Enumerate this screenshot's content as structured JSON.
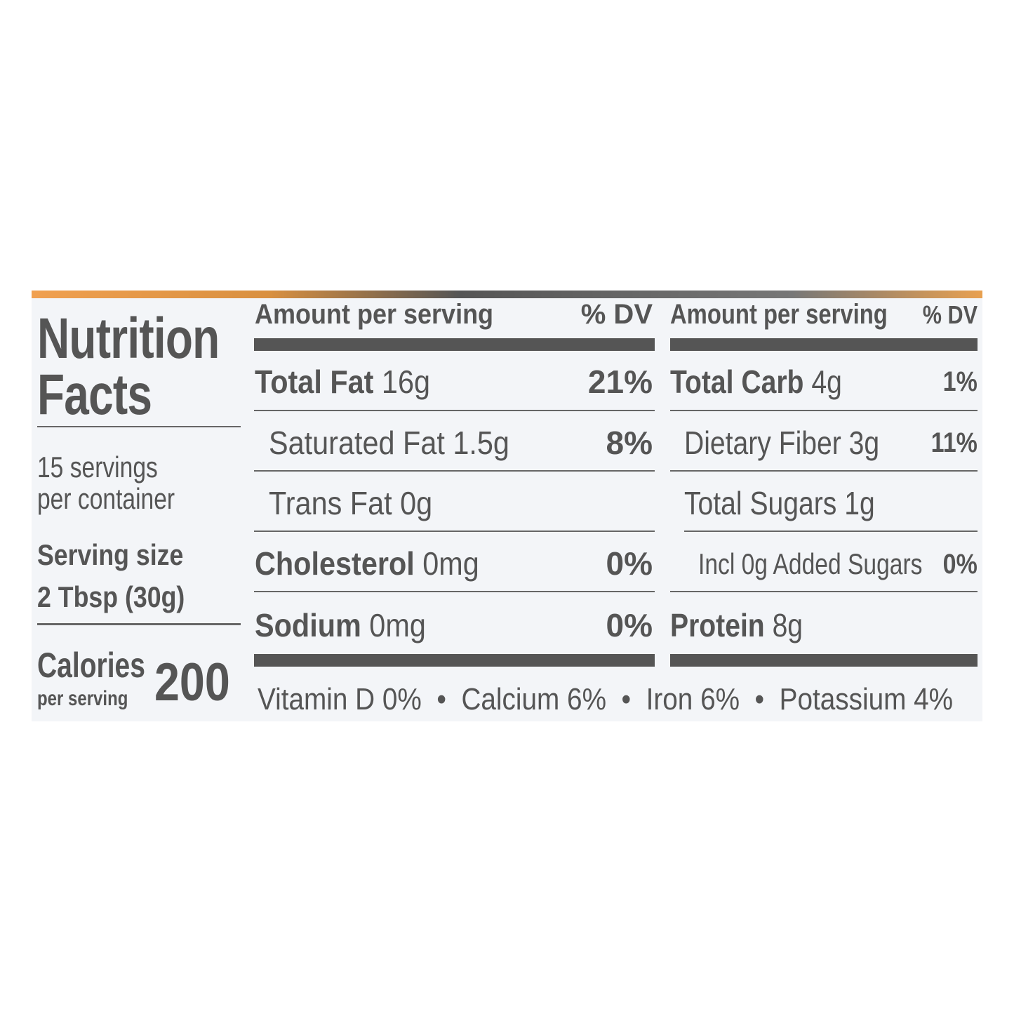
{
  "title_line1": "Nutrition",
  "title_line2": "Facts",
  "servings_line1": "15 servings",
  "servings_line2": "per container",
  "serving_size_label": "Serving size",
  "serving_size_value": "2 Tbsp (30g)",
  "calories_label": "Calories",
  "calories_sub": "per serving",
  "calories_value": "200",
  "left_table": {
    "header": "Amount per serving",
    "dv_header": "% DV",
    "rows": [
      {
        "name": "Total Fat",
        "amount": "16g",
        "dv": "21%"
      },
      {
        "name": "Saturated Fat",
        "amount": "1.5g",
        "dv": "8%"
      },
      {
        "name": "Trans Fat",
        "amount": "0g",
        "dv": ""
      },
      {
        "name": "Cholesterol",
        "amount": "0mg",
        "dv": "0%"
      },
      {
        "name": "Sodium",
        "amount": "0mg",
        "dv": "0%"
      }
    ]
  },
  "right_table": {
    "header": "Amount per serving",
    "dv_header": "% DV",
    "rows": [
      {
        "name": "Total Carb",
        "amount": "4g",
        "dv": "1%"
      },
      {
        "name": "Dietary Fiber",
        "amount": "3g",
        "dv": "11%"
      },
      {
        "name": "Total Sugars",
        "amount": "1g",
        "dv": ""
      },
      {
        "name": "Incl 0g Added Sugars",
        "amount": "",
        "dv": "0%"
      },
      {
        "name": "Protein",
        "amount": "8g",
        "dv": ""
      }
    ]
  },
  "footer": "Vitamin D 0%  •  Calcium 6%  •  Iron 6%  •  Potassium 4%"
}
